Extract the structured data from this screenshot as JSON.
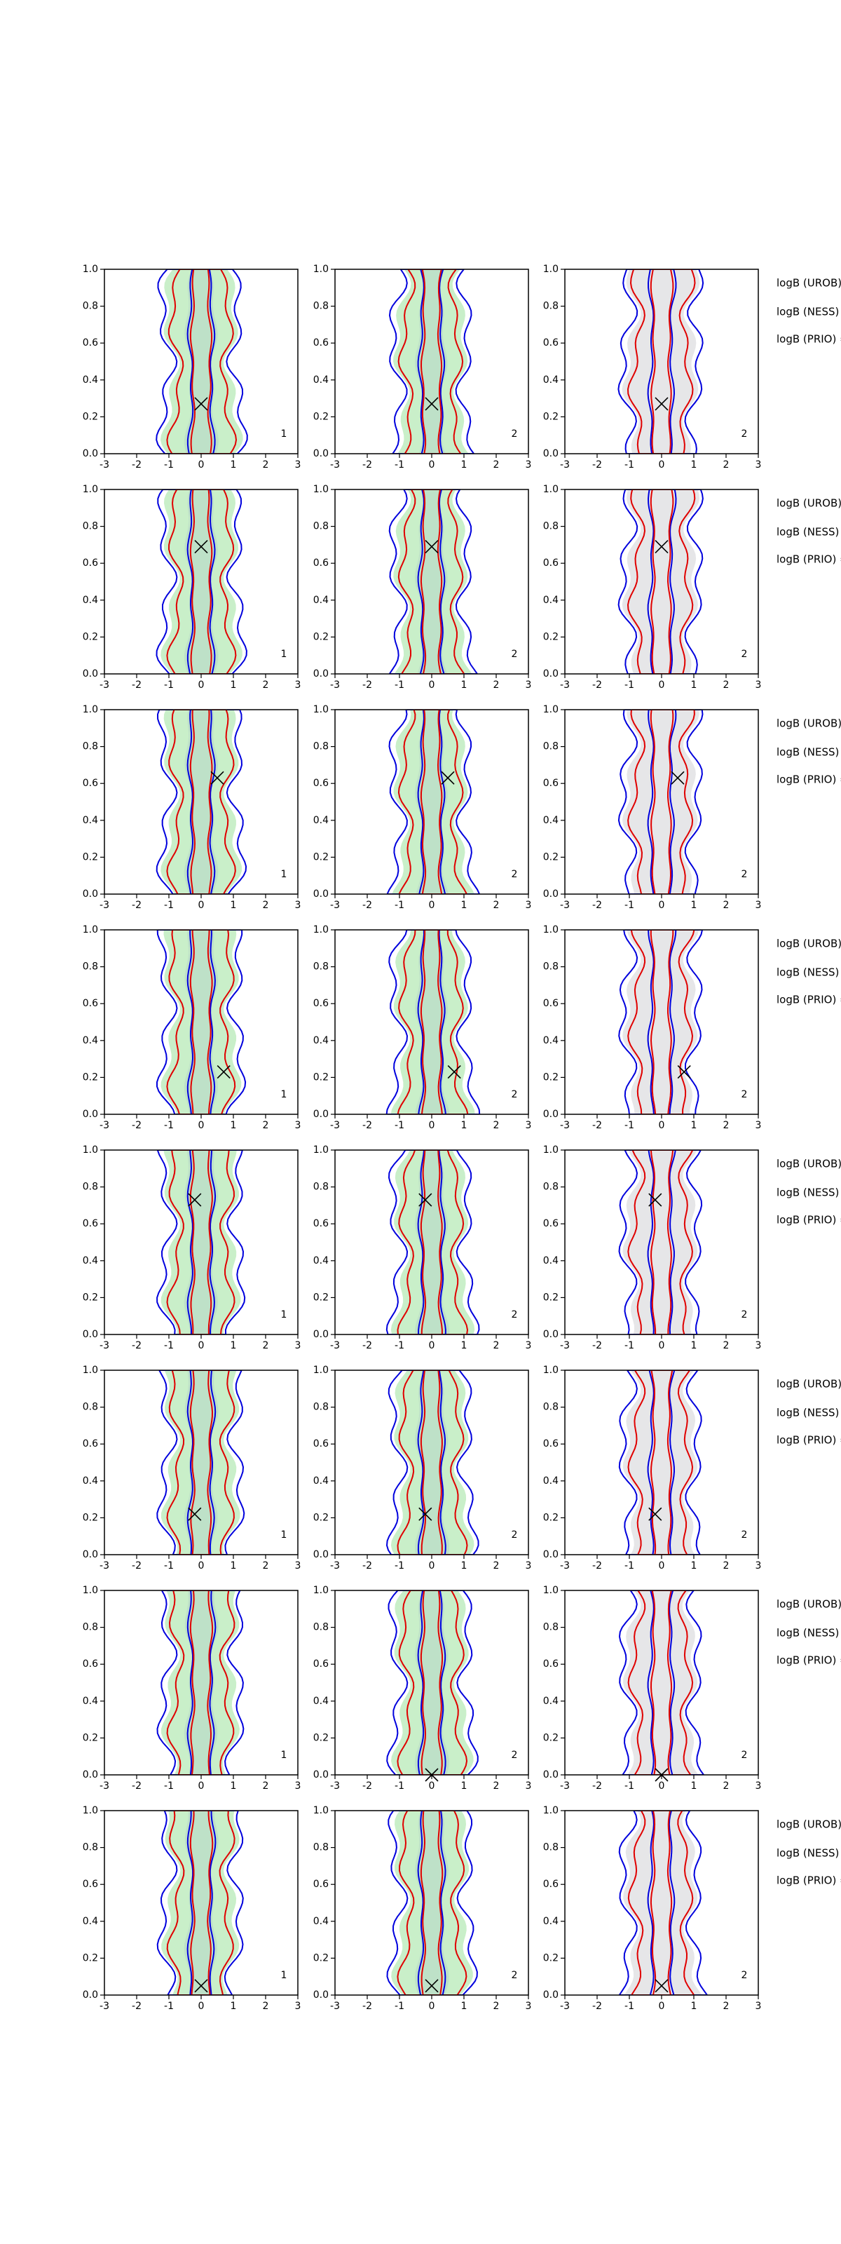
{
  "chart_data": [
    {
      "type": "contour",
      "panel_label": "1",
      "marker": {
        "x": 0,
        "y": 0.27
      },
      "xlim": [
        -3,
        3
      ],
      "ylim": [
        0,
        1
      ],
      "xticks": [
        -3,
        -2,
        -1,
        0,
        1,
        2,
        3
      ],
      "yticks": [
        {
          "value": 0,
          "label": "0.0"
        },
        {
          "value": 0.2,
          "label": "0.2"
        },
        {
          "value": 0.4,
          "label": "0.4"
        },
        {
          "value": 0.6,
          "label": "0.6"
        },
        {
          "value": 0.8,
          "label": "0.8"
        },
        {
          "value": 1,
          "label": "1.0"
        }
      ]
    },
    {
      "type": "contour",
      "panel_label": "2",
      "marker": {
        "x": 0,
        "y": 0.27
      },
      "xlim": [
        -3,
        3
      ],
      "ylim": [
        0,
        1
      ],
      "xticks": [
        -3,
        -2,
        -1,
        0,
        1,
        2,
        3
      ],
      "yticks": [
        {
          "value": 0,
          "label": "0.0"
        },
        {
          "value": 0.2,
          "label": "0.2"
        },
        {
          "value": 0.4,
          "label": "0.4"
        },
        {
          "value": 0.6,
          "label": "0.6"
        },
        {
          "value": 0.8,
          "label": "0.8"
        },
        {
          "value": 1,
          "label": "1.0"
        }
      ]
    },
    {
      "type": "contour",
      "panel_label": "2",
      "marker": {
        "x": 0,
        "y": 0.27
      },
      "xlim": [
        -3,
        3
      ],
      "ylim": [
        0,
        1
      ],
      "xticks": [
        -3,
        -2,
        -1,
        0,
        1,
        2,
        3
      ],
      "yticks": [
        {
          "value": 0,
          "label": "0.0"
        },
        {
          "value": 0.2,
          "label": "0.2"
        },
        {
          "value": 0.4,
          "label": "0.4"
        },
        {
          "value": 0.6,
          "label": "0.6"
        },
        {
          "value": 0.8,
          "label": "0.8"
        },
        {
          "value": 1,
          "label": "1.0"
        }
      ]
    },
    {
      "type": "contour",
      "panel_label": "1",
      "marker": {
        "x": 0,
        "y": 0.69
      },
      "xlim": [
        -3,
        3
      ],
      "ylim": [
        0,
        1
      ],
      "xticks": [
        -3,
        -2,
        -1,
        0,
        1,
        2,
        3
      ],
      "yticks": [
        {
          "value": 0,
          "label": "0.0"
        },
        {
          "value": 0.2,
          "label": "0.2"
        },
        {
          "value": 0.4,
          "label": "0.4"
        },
        {
          "value": 0.6,
          "label": "0.6"
        },
        {
          "value": 0.8,
          "label": "0.8"
        },
        {
          "value": 1,
          "label": "1.0"
        }
      ]
    },
    {
      "type": "contour",
      "panel_label": "2",
      "marker": {
        "x": 0,
        "y": 0.69
      },
      "xlim": [
        -3,
        3
      ],
      "ylim": [
        0,
        1
      ],
      "xticks": [
        -3,
        -2,
        -1,
        0,
        1,
        2,
        3
      ],
      "yticks": [
        {
          "value": 0,
          "label": "0.0"
        },
        {
          "value": 0.2,
          "label": "0.2"
        },
        {
          "value": 0.4,
          "label": "0.4"
        },
        {
          "value": 0.6,
          "label": "0.6"
        },
        {
          "value": 0.8,
          "label": "0.8"
        },
        {
          "value": 1,
          "label": "1.0"
        }
      ]
    },
    {
      "type": "contour",
      "panel_label": "2",
      "marker": {
        "x": 0,
        "y": 0.69
      },
      "xlim": [
        -3,
        3
      ],
      "ylim": [
        0,
        1
      ],
      "xticks": [
        -3,
        -2,
        -1,
        0,
        1,
        2,
        3
      ],
      "yticks": [
        {
          "value": 0,
          "label": "0.0"
        },
        {
          "value": 0.2,
          "label": "0.2"
        },
        {
          "value": 0.4,
          "label": "0.4"
        },
        {
          "value": 0.6,
          "label": "0.6"
        },
        {
          "value": 0.8,
          "label": "0.8"
        },
        {
          "value": 1,
          "label": "1.0"
        }
      ]
    },
    {
      "type": "contour",
      "panel_label": "1",
      "marker": {
        "x": 0.5,
        "y": 0.63
      },
      "xlim": [
        -3,
        3
      ],
      "ylim": [
        0,
        1
      ],
      "xticks": [
        -3,
        -2,
        -1,
        0,
        1,
        2,
        3
      ],
      "yticks": [
        {
          "value": 0,
          "label": "0.0"
        },
        {
          "value": 0.2,
          "label": "0.2"
        },
        {
          "value": 0.4,
          "label": "0.4"
        },
        {
          "value": 0.6,
          "label": "0.6"
        },
        {
          "value": 0.8,
          "label": "0.8"
        },
        {
          "value": 1,
          "label": "1.0"
        }
      ]
    },
    {
      "type": "contour",
      "panel_label": "2",
      "marker": {
        "x": 0.5,
        "y": 0.63
      },
      "xlim": [
        -3,
        3
      ],
      "ylim": [
        0,
        1
      ],
      "xticks": [
        -3,
        -2,
        -1,
        0,
        1,
        2,
        3
      ],
      "yticks": [
        {
          "value": 0,
          "label": "0.0"
        },
        {
          "value": 0.2,
          "label": "0.2"
        },
        {
          "value": 0.4,
          "label": "0.4"
        },
        {
          "value": 0.6,
          "label": "0.6"
        },
        {
          "value": 0.8,
          "label": "0.8"
        },
        {
          "value": 1,
          "label": "1.0"
        }
      ]
    },
    {
      "type": "contour",
      "panel_label": "2",
      "marker": {
        "x": 0.5,
        "y": 0.63
      },
      "xlim": [
        -3,
        3
      ],
      "ylim": [
        0,
        1
      ],
      "xticks": [
        -3,
        -2,
        -1,
        0,
        1,
        2,
        3
      ],
      "yticks": [
        {
          "value": 0,
          "label": "0.0"
        },
        {
          "value": 0.2,
          "label": "0.2"
        },
        {
          "value": 0.4,
          "label": "0.4"
        },
        {
          "value": 0.6,
          "label": "0.6"
        },
        {
          "value": 0.8,
          "label": "0.8"
        },
        {
          "value": 1,
          "label": "1.0"
        }
      ]
    },
    {
      "type": "contour",
      "panel_label": "1",
      "marker": {
        "x": 0.7,
        "y": 0.23
      },
      "xlim": [
        -3,
        3
      ],
      "ylim": [
        0,
        1
      ],
      "xticks": [
        -3,
        -2,
        -1,
        0,
        1,
        2,
        3
      ],
      "yticks": [
        {
          "value": 0,
          "label": "0.0"
        },
        {
          "value": 0.2,
          "label": "0.2"
        },
        {
          "value": 0.4,
          "label": "0.4"
        },
        {
          "value": 0.6,
          "label": "0.6"
        },
        {
          "value": 0.8,
          "label": "0.8"
        },
        {
          "value": 1,
          "label": "1.0"
        }
      ]
    },
    {
      "type": "contour",
      "panel_label": "2",
      "marker": {
        "x": 0.7,
        "y": 0.23
      },
      "xlim": [
        -3,
        3
      ],
      "ylim": [
        0,
        1
      ],
      "xticks": [
        -3,
        -2,
        -1,
        0,
        1,
        2,
        3
      ],
      "yticks": [
        {
          "value": 0,
          "label": "0.0"
        },
        {
          "value": 0.2,
          "label": "0.2"
        },
        {
          "value": 0.4,
          "label": "0.4"
        },
        {
          "value": 0.6,
          "label": "0.6"
        },
        {
          "value": 0.8,
          "label": "0.8"
        },
        {
          "value": 1,
          "label": "1.0"
        }
      ]
    },
    {
      "type": "contour",
      "panel_label": "2",
      "marker": {
        "x": 0.7,
        "y": 0.23
      },
      "xlim": [
        -3,
        3
      ],
      "ylim": [
        0,
        1
      ],
      "xticks": [
        -3,
        -2,
        -1,
        0,
        1,
        2,
        3
      ],
      "yticks": [
        {
          "value": 0,
          "label": "0.0"
        },
        {
          "value": 0.2,
          "label": "0.2"
        },
        {
          "value": 0.4,
          "label": "0.4"
        },
        {
          "value": 0.6,
          "label": "0.6"
        },
        {
          "value": 0.8,
          "label": "0.8"
        },
        {
          "value": 1,
          "label": "1.0"
        }
      ]
    },
    {
      "type": "contour",
      "panel_label": "1",
      "marker": {
        "x": -0.2,
        "y": 0.73
      },
      "xlim": [
        -3,
        3
      ],
      "ylim": [
        0,
        1
      ],
      "xticks": [
        -3,
        -2,
        -1,
        0,
        1,
        2,
        3
      ],
      "yticks": [
        {
          "value": 0,
          "label": "0.0"
        },
        {
          "value": 0.2,
          "label": "0.2"
        },
        {
          "value": 0.4,
          "label": "0.4"
        },
        {
          "value": 0.6,
          "label": "0.6"
        },
        {
          "value": 0.8,
          "label": "0.8"
        },
        {
          "value": 1,
          "label": "1.0"
        }
      ]
    },
    {
      "type": "contour",
      "panel_label": "2",
      "marker": {
        "x": -0.2,
        "y": 0.73
      },
      "xlim": [
        -3,
        3
      ],
      "ylim": [
        0,
        1
      ],
      "xticks": [
        -3,
        -2,
        -1,
        0,
        1,
        2,
        3
      ],
      "yticks": [
        {
          "value": 0,
          "label": "0.0"
        },
        {
          "value": 0.2,
          "label": "0.2"
        },
        {
          "value": 0.4,
          "label": "0.4"
        },
        {
          "value": 0.6,
          "label": "0.6"
        },
        {
          "value": 0.8,
          "label": "0.8"
        },
        {
          "value": 1,
          "label": "1.0"
        }
      ]
    },
    {
      "type": "contour",
      "panel_label": "2",
      "marker": {
        "x": -0.2,
        "y": 0.73
      },
      "xlim": [
        -3,
        3
      ],
      "ylim": [
        0,
        1
      ],
      "xticks": [
        -3,
        -2,
        -1,
        0,
        1,
        2,
        3
      ],
      "yticks": [
        {
          "value": 0,
          "label": "0.0"
        },
        {
          "value": 0.2,
          "label": "0.2"
        },
        {
          "value": 0.4,
          "label": "0.4"
        },
        {
          "value": 0.6,
          "label": "0.6"
        },
        {
          "value": 0.8,
          "label": "0.8"
        },
        {
          "value": 1,
          "label": "1.0"
        }
      ]
    },
    {
      "type": "contour",
      "panel_label": "1",
      "marker": {
        "x": -0.2,
        "y": 0.22
      },
      "xlim": [
        -3,
        3
      ],
      "ylim": [
        0,
        1
      ],
      "xticks": [
        -3,
        -2,
        -1,
        0,
        1,
        2,
        3
      ],
      "yticks": [
        {
          "value": 0,
          "label": "0.0"
        },
        {
          "value": 0.2,
          "label": "0.2"
        },
        {
          "value": 0.4,
          "label": "0.4"
        },
        {
          "value": 0.6,
          "label": "0.6"
        },
        {
          "value": 0.8,
          "label": "0.8"
        },
        {
          "value": 1,
          "label": "1.0"
        }
      ]
    },
    {
      "type": "contour",
      "panel_label": "2",
      "marker": {
        "x": -0.2,
        "y": 0.22
      },
      "xlim": [
        -3,
        3
      ],
      "ylim": [
        0,
        1
      ],
      "xticks": [
        -3,
        -2,
        -1,
        0,
        1,
        2,
        3
      ],
      "yticks": [
        {
          "value": 0,
          "label": "0.0"
        },
        {
          "value": 0.2,
          "label": "0.2"
        },
        {
          "value": 0.4,
          "label": "0.4"
        },
        {
          "value": 0.6,
          "label": "0.6"
        },
        {
          "value": 0.8,
          "label": "0.8"
        },
        {
          "value": 1,
          "label": "1.0"
        }
      ]
    },
    {
      "type": "contour",
      "panel_label": "2",
      "marker": {
        "x": -0.2,
        "y": 0.22
      },
      "xlim": [
        -3,
        3
      ],
      "ylim": [
        0,
        1
      ],
      "xticks": [
        -3,
        -2,
        -1,
        0,
        1,
        2,
        3
      ],
      "yticks": [
        {
          "value": 0,
          "label": "0.0"
        },
        {
          "value": 0.2,
          "label": "0.2"
        },
        {
          "value": 0.4,
          "label": "0.4"
        },
        {
          "value": 0.6,
          "label": "0.6"
        },
        {
          "value": 0.8,
          "label": "0.8"
        },
        {
          "value": 1,
          "label": "1.0"
        }
      ]
    },
    {
      "type": "contour",
      "panel_label": "1",
      "marker": null,
      "xlim": [
        -3,
        3
      ],
      "ylim": [
        0,
        1
      ],
      "xticks": [
        -3,
        -2,
        -1,
        0,
        1,
        2,
        3
      ],
      "yticks": [
        {
          "value": 0,
          "label": "0.0"
        },
        {
          "value": 0.2,
          "label": "0.2"
        },
        {
          "value": 0.4,
          "label": "0.4"
        },
        {
          "value": 0.6,
          "label": "0.6"
        },
        {
          "value": 0.8,
          "label": "0.8"
        },
        {
          "value": 1,
          "label": "1.0"
        }
      ]
    },
    {
      "type": "contour",
      "panel_label": "2",
      "marker": {
        "x": 0,
        "y": 0
      },
      "xlim": [
        -3,
        3
      ],
      "ylim": [
        0,
        1
      ],
      "xticks": [
        -3,
        -2,
        -1,
        0,
        1,
        2,
        3
      ],
      "yticks": [
        {
          "value": 0,
          "label": "0.0"
        },
        {
          "value": 0.2,
          "label": "0.2"
        },
        {
          "value": 0.4,
          "label": "0.4"
        },
        {
          "value": 0.6,
          "label": "0.6"
        },
        {
          "value": 0.8,
          "label": "0.8"
        },
        {
          "value": 1,
          "label": "1.0"
        }
      ]
    },
    {
      "type": "contour",
      "panel_label": "2",
      "marker": {
        "x": 0,
        "y": 0
      },
      "xlim": [
        -3,
        3
      ],
      "ylim": [
        0,
        1
      ],
      "xticks": [
        -3,
        -2,
        -1,
        0,
        1,
        2,
        3
      ],
      "yticks": [
        {
          "value": 0,
          "label": "0.0"
        },
        {
          "value": 0.2,
          "label": "0.2"
        },
        {
          "value": 0.4,
          "label": "0.4"
        },
        {
          "value": 0.6,
          "label": "0.6"
        },
        {
          "value": 0.8,
          "label": "0.8"
        },
        {
          "value": 1,
          "label": "1.0"
        }
      ]
    },
    {
      "type": "contour",
      "panel_label": "1",
      "marker": {
        "x": 0,
        "y": 0.05
      },
      "xlim": [
        -3,
        3
      ],
      "ylim": [
        0,
        1
      ],
      "xticks": [
        -3,
        -2,
        -1,
        0,
        1,
        2,
        3
      ],
      "yticks": [
        {
          "value": 0,
          "label": "0.0"
        },
        {
          "value": 0.2,
          "label": "0.2"
        },
        {
          "value": 0.4,
          "label": "0.4"
        },
        {
          "value": 0.6,
          "label": "0.6"
        },
        {
          "value": 0.8,
          "label": "0.8"
        },
        {
          "value": 1,
          "label": "1.0"
        }
      ]
    },
    {
      "type": "contour",
      "panel_label": "2",
      "marker": {
        "x": 0,
        "y": 0.05
      },
      "xlim": [
        -3,
        3
      ],
      "ylim": [
        0,
        1
      ],
      "xticks": [
        -3,
        -2,
        -1,
        0,
        1,
        2,
        3
      ],
      "yticks": [
        {
          "value": 0,
          "label": "0.0"
        },
        {
          "value": 0.2,
          "label": "0.2"
        },
        {
          "value": 0.4,
          "label": "0.4"
        },
        {
          "value": 0.6,
          "label": "0.6"
        },
        {
          "value": 0.8,
          "label": "0.8"
        },
        {
          "value": 1,
          "label": "1.0"
        }
      ]
    },
    {
      "type": "contour",
      "panel_label": "2",
      "marker": {
        "x": 0,
        "y": 0.05
      },
      "xlim": [
        -3,
        3
      ],
      "ylim": [
        0,
        1
      ],
      "xticks": [
        -3,
        -2,
        -1,
        0,
        1,
        2,
        3
      ],
      "yticks": [
        {
          "value": 0,
          "label": "0.0"
        },
        {
          "value": 0.2,
          "label": "0.2"
        },
        {
          "value": 0.4,
          "label": "0.4"
        },
        {
          "value": 0.6,
          "label": "0.6"
        },
        {
          "value": 0.8,
          "label": "0.8"
        },
        {
          "value": 1,
          "label": "1.0"
        }
      ]
    }
  ],
  "side_text": [
    [
      "logB (UROB) =",
      "logB (NESS) =",
      "logB (PRIO) ="
    ],
    [
      "logB (UROB) =",
      "logB (NESS) =",
      "logB (PRIO) ="
    ],
    [
      "logB (UROB) =",
      "logB (NESS) =",
      "logB (PRIO) ="
    ],
    [
      "logB (UROB) =",
      "logB (NESS) =",
      "logB (PRIO) ="
    ],
    [
      "logB (UROB) =",
      "logB (NESS) =",
      "logB (PRIO) ="
    ],
    [
      "logB (UROB) =",
      "logB (NESS) =",
      "logB (PRIO) ="
    ],
    [
      "logB (UROB) =",
      "logB (NESS) =",
      "logB (PRIO) ="
    ],
    [
      "logB (UROB) =",
      "logB (NESS) =",
      "logB (PRIO) ="
    ]
  ]
}
